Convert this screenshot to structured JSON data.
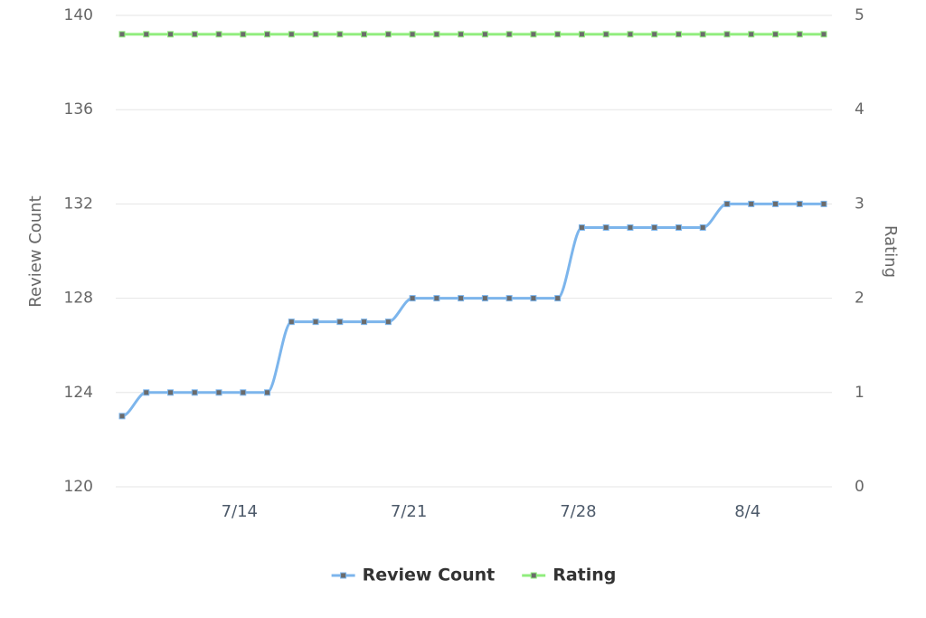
{
  "chart_data": {
    "type": "line",
    "x": [
      "7/9",
      "7/10",
      "7/11",
      "7/12",
      "7/13",
      "7/14",
      "7/15",
      "7/16",
      "7/17",
      "7/18",
      "7/19",
      "7/20",
      "7/21",
      "7/22",
      "7/23",
      "7/24",
      "7/25",
      "7/26",
      "7/27",
      "7/28",
      "7/29",
      "7/30",
      "7/31",
      "8/1",
      "8/2",
      "8/3",
      "8/4",
      "8/5",
      "8/6",
      "8/7"
    ],
    "xticks": [
      "7/14",
      "7/21",
      "7/28",
      "8/4"
    ],
    "ylabel": "Review Count",
    "y2label": "Rating",
    "ylim": [
      120,
      140
    ],
    "yticks": [
      120,
      124,
      128,
      132,
      136,
      140
    ],
    "y2lim": [
      0,
      5
    ],
    "y2ticks": [
      0,
      1,
      2,
      3,
      4,
      5
    ],
    "grid": true,
    "legend": "bottom",
    "series": [
      {
        "name": "Review Count",
        "color": "#7cb5ec",
        "values": [
          123,
          124,
          124,
          124,
          124,
          124,
          124,
          127,
          127,
          127,
          127,
          127,
          128,
          128,
          128,
          128,
          128,
          128,
          128,
          131,
          131,
          131,
          131,
          131,
          131,
          132,
          132,
          132,
          132,
          132
        ]
      },
      {
        "name": "Rating",
        "color": "#90ed7d",
        "axis": "y2",
        "values": [
          4.8,
          4.8,
          4.8,
          4.8,
          4.8,
          4.8,
          4.8,
          4.8,
          4.8,
          4.8,
          4.8,
          4.8,
          4.8,
          4.8,
          4.8,
          4.8,
          4.8,
          4.8,
          4.8,
          4.8,
          4.8,
          4.8,
          4.8,
          4.8,
          4.8,
          4.8,
          4.8,
          4.8,
          4.8,
          4.8
        ]
      }
    ]
  }
}
